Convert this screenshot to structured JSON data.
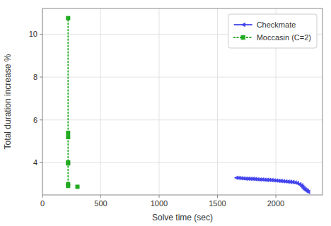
{
  "chart_data": {
    "type": "line",
    "xlabel": "Solve time (sec)",
    "ylabel": "Total duration increase %",
    "xlim": [
      0,
      2400
    ],
    "ylim": [
      2.5,
      11.2
    ],
    "xticks": [
      0,
      500,
      1000,
      1500,
      2000
    ],
    "yticks": [
      4,
      6,
      8,
      10
    ],
    "grid": true,
    "legend": "upper right",
    "series": [
      {
        "name": "Checkmate",
        "color": "#4444ee",
        "type": "line",
        "marker": "triangle-left",
        "line_style": "solid",
        "x": [
          1660,
          1680,
          1700,
          1720,
          1740,
          1760,
          1780,
          1800,
          1820,
          1840,
          1860,
          1880,
          1900,
          1920,
          1940,
          1960,
          1980,
          2000,
          2020,
          2040,
          2060,
          2080,
          2100,
          2120,
          2140,
          2160,
          2180,
          2200,
          2215,
          2225,
          2235,
          2245,
          2255,
          2265,
          2275
        ],
        "values": [
          3.3,
          3.29,
          3.28,
          3.27,
          3.26,
          3.26,
          3.25,
          3.25,
          3.24,
          3.23,
          3.22,
          3.22,
          3.21,
          3.2,
          3.2,
          3.19,
          3.18,
          3.17,
          3.16,
          3.15,
          3.14,
          3.13,
          3.12,
          3.11,
          3.1,
          3.08,
          3.05,
          3.0,
          2.95,
          2.88,
          2.82,
          2.76,
          2.72,
          2.68,
          2.64
        ]
      },
      {
        "name": "Moccasin (C=2)",
        "color": "#22aa22",
        "type": "scatter",
        "marker": "square",
        "line_style": "dotted",
        "x": [
          220,
          220,
          220,
          220,
          220,
          220,
          220,
          300
        ],
        "values": [
          10.75,
          5.4,
          5.2,
          4.02,
          3.97,
          3.0,
          2.92,
          2.88
        ],
        "line_x": [
          220,
          220
        ],
        "line_values": [
          2.9,
          10.75
        ]
      }
    ]
  }
}
